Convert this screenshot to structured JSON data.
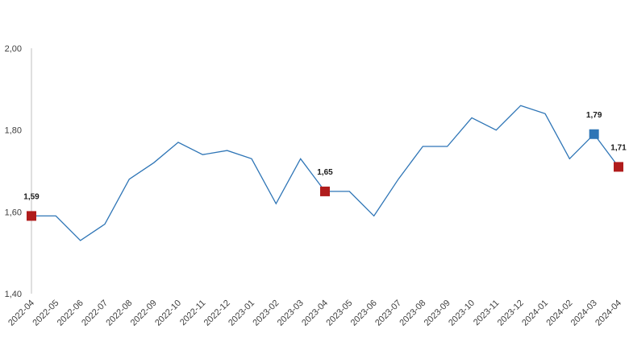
{
  "colors": {
    "line": "#2e75b6",
    "marker_red": "#b01c1c",
    "marker_blue": "#2e75b6",
    "axis": "#bfbfbf",
    "tick_text": "#404040"
  },
  "chart_data": {
    "type": "line",
    "title": "",
    "xlabel": "",
    "ylabel": "",
    "ylim": [
      1.4,
      2.0
    ],
    "yticks": [
      1.4,
      1.6,
      1.8,
      2.0
    ],
    "ytick_labels": [
      "1,40",
      "1,60",
      "1,80",
      "2,00"
    ],
    "grid": false,
    "categories": [
      "2022-04",
      "2022-05",
      "2022-06",
      "2022-07",
      "2022-08",
      "2022-09",
      "2022-10",
      "2022-11",
      "2022-12",
      "2023-01",
      "2023-02",
      "2023-03",
      "2023-04",
      "2023-05",
      "2023-06",
      "2023-07",
      "2023-08",
      "2023-09",
      "2023-10",
      "2023-11",
      "2023-12",
      "2024-01",
      "2024-02",
      "2024-03",
      "2024-04"
    ],
    "series": [
      {
        "values": [
          1.59,
          1.59,
          1.53,
          1.57,
          1.68,
          1.72,
          1.77,
          1.74,
          1.75,
          1.73,
          1.62,
          1.73,
          1.65,
          1.65,
          1.59,
          1.68,
          1.76,
          1.76,
          1.83,
          1.8,
          1.86,
          1.84,
          1.73,
          1.79,
          1.71
        ]
      }
    ],
    "highlighted_points": [
      {
        "index": 0,
        "label": "1,59",
        "marker": "red"
      },
      {
        "index": 12,
        "label": "1,65",
        "marker": "red"
      },
      {
        "index": 23,
        "label": "1,79",
        "marker": "blue"
      },
      {
        "index": 24,
        "label": "1,71",
        "marker": "red"
      }
    ]
  }
}
